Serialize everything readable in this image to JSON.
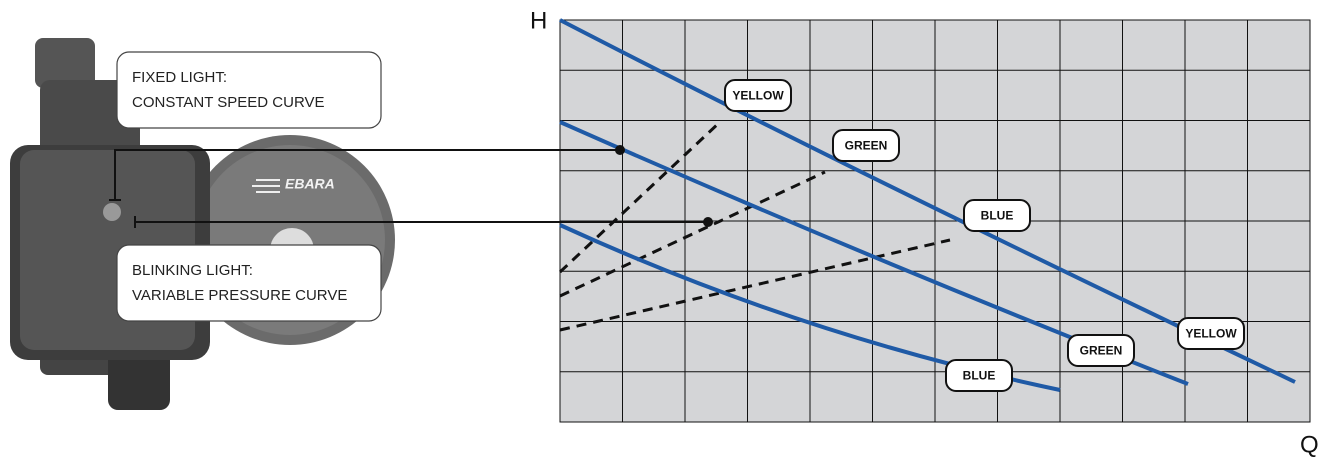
{
  "callouts": [
    {
      "lines": [
        "FIXED LIGHT:",
        "CONSTANT SPEED CURVE"
      ]
    },
    {
      "lines": [
        "BLINKING LIGHT:",
        "VARIABLE PRESSURE CURVE"
      ]
    }
  ],
  "brand": "EBARA",
  "axes": {
    "y": "H",
    "x": "Q"
  },
  "curve_labels": [
    "YELLOW",
    "GREEN",
    "BLUE",
    "GREEN",
    "YELLOW",
    "BLUE"
  ]
}
